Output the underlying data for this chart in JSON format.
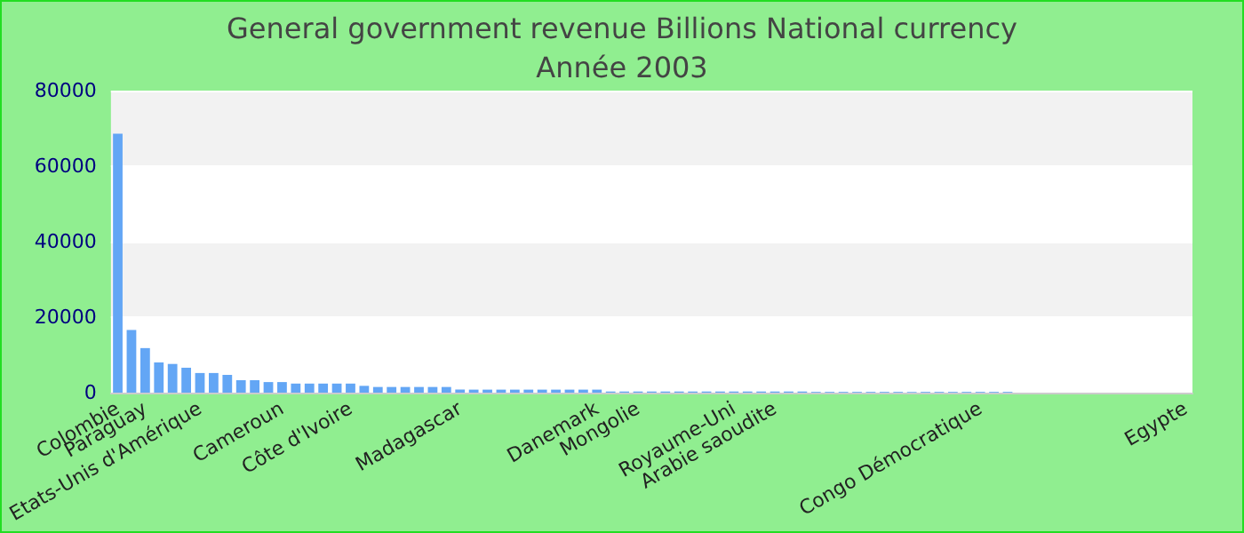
{
  "chart_data": {
    "type": "bar",
    "title": "General government revenue Billions National currency",
    "subtitle": "Année 2003",
    "categories": [
      "Colombie",
      null,
      "Paraguay",
      null,
      null,
      null,
      "Etats-Unis d'Amérique",
      null,
      null,
      null,
      null,
      null,
      "Cameroun",
      null,
      null,
      null,
      null,
      "Côte d'Ivoire",
      null,
      null,
      null,
      null,
      null,
      null,
      null,
      "Madagascar",
      null,
      null,
      null,
      null,
      null,
      null,
      null,
      null,
      null,
      "Danemark",
      null,
      null,
      "Mongolie",
      null,
      null,
      null,
      null,
      null,
      null,
      "Royaume-Uni",
      null,
      null,
      "Arabie saoudite",
      null,
      null,
      null,
      null,
      null,
      null,
      null,
      null,
      null,
      null,
      null,
      null,
      null,
      null,
      "Congo Démocratique",
      null,
      null,
      null,
      null,
      null,
      null,
      null,
      null,
      null,
      null,
      null,
      null,
      null,
      null,
      "Egypte"
    ],
    "values": [
      68600,
      16600,
      11800,
      8000,
      7600,
      6600,
      5200,
      5200,
      4700,
      3300,
      3300,
      2800,
      2800,
      2400,
      2400,
      2400,
      2400,
      2400,
      1800,
      1500,
      1500,
      1500,
      1500,
      1500,
      1500,
      800,
      800,
      800,
      800,
      800,
      800,
      800,
      800,
      800,
      800,
      800,
      300,
      300,
      300,
      300,
      300,
      300,
      300,
      300,
      300,
      300,
      300,
      300,
      300,
      300,
      300,
      200,
      200,
      200,
      200,
      200,
      200,
      200,
      200,
      200,
      200,
      200,
      200,
      200,
      200,
      200,
      0,
      0,
      0,
      0,
      0,
      0,
      0,
      0,
      0,
      0,
      0,
      0,
      0
    ],
    "color": "#63a6f5",
    "ylim": [
      0,
      80000
    ],
    "yticks": [
      0,
      20000,
      40000,
      60000,
      80000
    ],
    "grid": "y"
  }
}
